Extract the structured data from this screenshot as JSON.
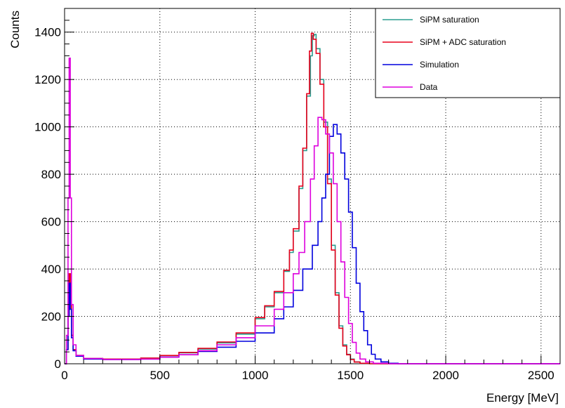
{
  "chart_data": {
    "type": "line",
    "title": "",
    "xlabel": "Energy [MeV]",
    "ylabel": "Counts",
    "xlim": [
      0,
      2600
    ],
    "ylim": [
      0,
      1500
    ],
    "x_ticks": [
      0,
      500,
      1000,
      1500,
      2000,
      2500
    ],
    "y_ticks": [
      0,
      200,
      400,
      600,
      800,
      1000,
      1200,
      1400
    ],
    "grid": true,
    "legend_position": "top-right",
    "series": [
      {
        "name": "SiPM saturation",
        "color": "#2a9d8f",
        "points": [
          [
            0,
            0
          ],
          [
            10,
            60
          ],
          [
            18,
            200
          ],
          [
            24,
            380
          ],
          [
            30,
            250
          ],
          [
            36,
            120
          ],
          [
            45,
            60
          ],
          [
            60,
            35
          ],
          [
            100,
            22
          ],
          [
            200,
            20
          ],
          [
            300,
            20
          ],
          [
            400,
            24
          ],
          [
            500,
            34
          ],
          [
            600,
            46
          ],
          [
            700,
            62
          ],
          [
            800,
            88
          ],
          [
            900,
            125
          ],
          [
            1000,
            190
          ],
          [
            1050,
            240
          ],
          [
            1100,
            300
          ],
          [
            1150,
            390
          ],
          [
            1180,
            470
          ],
          [
            1200,
            560
          ],
          [
            1230,
            740
          ],
          [
            1250,
            900
          ],
          [
            1270,
            1130
          ],
          [
            1290,
            1300
          ],
          [
            1300,
            1385
          ],
          [
            1310,
            1390
          ],
          [
            1320,
            1330
          ],
          [
            1340,
            1200
          ],
          [
            1360,
            1020
          ],
          [
            1380,
            780
          ],
          [
            1400,
            500
          ],
          [
            1420,
            300
          ],
          [
            1440,
            160
          ],
          [
            1460,
            80
          ],
          [
            1480,
            40
          ],
          [
            1500,
            20
          ],
          [
            1520,
            8
          ],
          [
            1550,
            2
          ],
          [
            1600,
            0
          ],
          [
            2600,
            0
          ]
        ]
      },
      {
        "name": "SiPM + ADC saturation",
        "color": "#e8001c",
        "points": [
          [
            0,
            0
          ],
          [
            10,
            60
          ],
          [
            18,
            200
          ],
          [
            24,
            380
          ],
          [
            30,
            250
          ],
          [
            36,
            120
          ],
          [
            45,
            60
          ],
          [
            60,
            35
          ],
          [
            100,
            22
          ],
          [
            200,
            20
          ],
          [
            300,
            20
          ],
          [
            400,
            24
          ],
          [
            500,
            35
          ],
          [
            600,
            48
          ],
          [
            700,
            65
          ],
          [
            800,
            92
          ],
          [
            900,
            130
          ],
          [
            1000,
            195
          ],
          [
            1050,
            245
          ],
          [
            1100,
            305
          ],
          [
            1150,
            395
          ],
          [
            1180,
            480
          ],
          [
            1200,
            570
          ],
          [
            1230,
            750
          ],
          [
            1250,
            910
          ],
          [
            1270,
            1140
          ],
          [
            1285,
            1320
          ],
          [
            1295,
            1395
          ],
          [
            1305,
            1370
          ],
          [
            1320,
            1310
          ],
          [
            1340,
            1180
          ],
          [
            1360,
            1000
          ],
          [
            1380,
            760
          ],
          [
            1400,
            480
          ],
          [
            1420,
            290
          ],
          [
            1440,
            150
          ],
          [
            1460,
            75
          ],
          [
            1480,
            38
          ],
          [
            1500,
            18
          ],
          [
            1520,
            7
          ],
          [
            1550,
            2
          ],
          [
            1600,
            0
          ],
          [
            2600,
            0
          ]
        ]
      },
      {
        "name": "Simulation",
        "color": "#0000dd",
        "points": [
          [
            0,
            0
          ],
          [
            10,
            60
          ],
          [
            18,
            200
          ],
          [
            24,
            340
          ],
          [
            30,
            230
          ],
          [
            36,
            110
          ],
          [
            45,
            55
          ],
          [
            60,
            32
          ],
          [
            100,
            20
          ],
          [
            200,
            18
          ],
          [
            300,
            18
          ],
          [
            400,
            20
          ],
          [
            500,
            28
          ],
          [
            600,
            38
          ],
          [
            700,
            52
          ],
          [
            800,
            70
          ],
          [
            900,
            95
          ],
          [
            1000,
            130
          ],
          [
            1100,
            190
          ],
          [
            1150,
            240
          ],
          [
            1200,
            310
          ],
          [
            1250,
            400
          ],
          [
            1300,
            500
          ],
          [
            1330,
            600
          ],
          [
            1350,
            700
          ],
          [
            1370,
            800
          ],
          [
            1390,
            960
          ],
          [
            1410,
            1010
          ],
          [
            1430,
            970
          ],
          [
            1450,
            890
          ],
          [
            1470,
            780
          ],
          [
            1490,
            640
          ],
          [
            1510,
            490
          ],
          [
            1530,
            340
          ],
          [
            1550,
            220
          ],
          [
            1570,
            140
          ],
          [
            1590,
            80
          ],
          [
            1610,
            40
          ],
          [
            1630,
            20
          ],
          [
            1660,
            8
          ],
          [
            1700,
            2
          ],
          [
            1750,
            0
          ],
          [
            2600,
            0
          ]
        ]
      },
      {
        "name": "Data",
        "color": "#dd00dd",
        "points": [
          [
            0,
            0
          ],
          [
            10,
            120
          ],
          [
            18,
            700
          ],
          [
            24,
            1290
          ],
          [
            30,
            700
          ],
          [
            36,
            250
          ],
          [
            45,
            80
          ],
          [
            60,
            35
          ],
          [
            100,
            22
          ],
          [
            200,
            18
          ],
          [
            300,
            18
          ],
          [
            400,
            20
          ],
          [
            500,
            28
          ],
          [
            600,
            38
          ],
          [
            700,
            55
          ],
          [
            800,
            80
          ],
          [
            900,
            110
          ],
          [
            1000,
            160
          ],
          [
            1100,
            230
          ],
          [
            1150,
            300
          ],
          [
            1200,
            380
          ],
          [
            1230,
            470
          ],
          [
            1260,
            600
          ],
          [
            1290,
            780
          ],
          [
            1310,
            920
          ],
          [
            1330,
            1040
          ],
          [
            1350,
            1030
          ],
          [
            1370,
            970
          ],
          [
            1390,
            890
          ],
          [
            1410,
            760
          ],
          [
            1430,
            600
          ],
          [
            1450,
            430
          ],
          [
            1470,
            280
          ],
          [
            1490,
            170
          ],
          [
            1510,
            90
          ],
          [
            1530,
            45
          ],
          [
            1550,
            20
          ],
          [
            1580,
            8
          ],
          [
            1620,
            2
          ],
          [
            1700,
            0
          ],
          [
            2600,
            0
          ]
        ]
      }
    ]
  }
}
